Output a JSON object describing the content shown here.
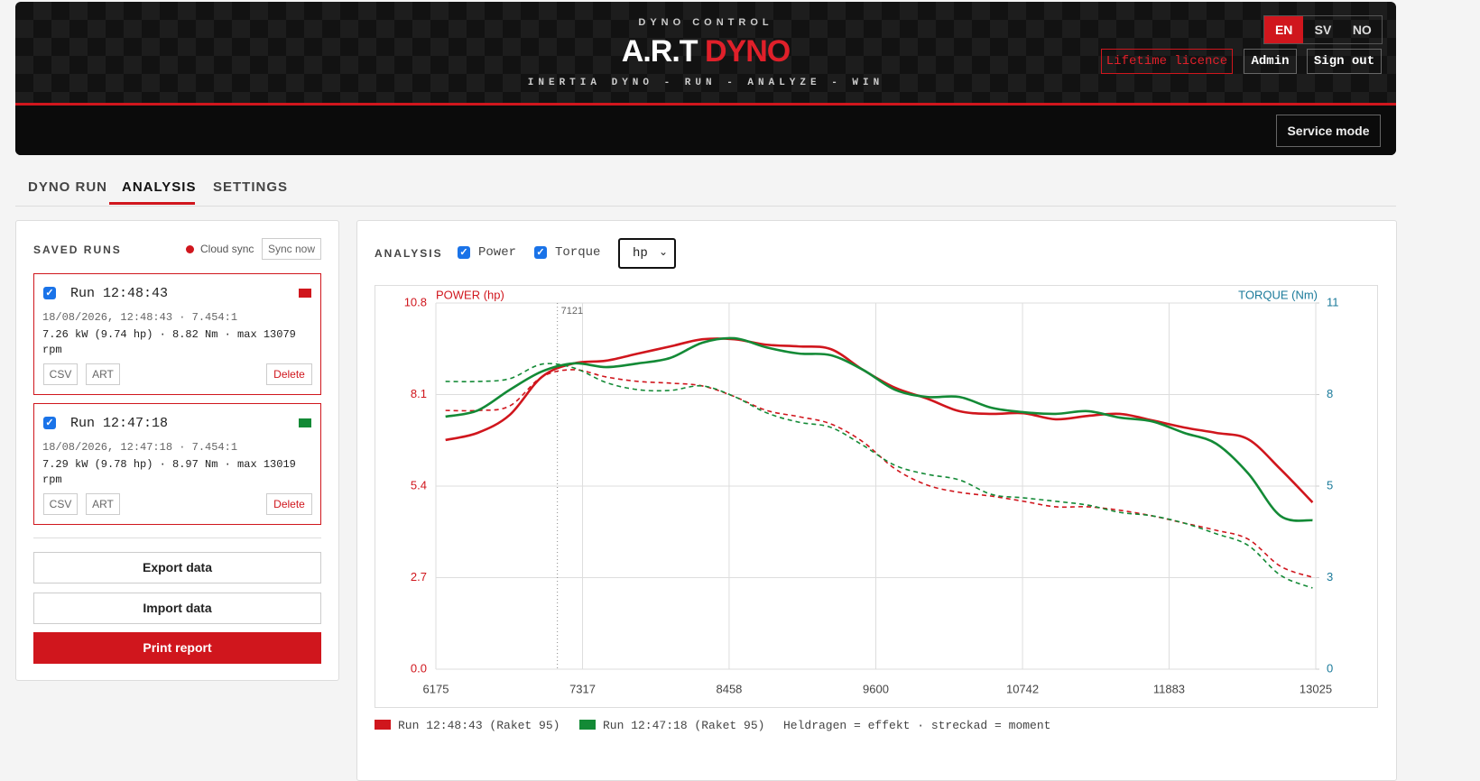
{
  "header": {
    "kicker": "DYNO CONTROL",
    "brand_main": "A.R.T",
    "brand_accent": "DYNO",
    "tagline": "INERTIA DYNO - RUN - ANALYZE - WIN",
    "languages": [
      "EN",
      "SV",
      "NO"
    ],
    "licence": "Lifetime licence",
    "admin": "Admin",
    "sign_out": "Sign out",
    "service_mode": "Service mode"
  },
  "tabs": [
    "DYNO RUN",
    "ANALYSIS",
    "SETTINGS"
  ],
  "saved_runs": {
    "title": "SAVED RUNS",
    "cloud_sync": "Cloud sync",
    "sync_now": "Sync now",
    "runs": [
      {
        "name": "Run 12:48:43",
        "meta": "18/08/2026, 12:48:43 · 7.454:1",
        "stats": "7.26 kW (9.74 hp) · 8.82 Nm · max 13079 rpm",
        "color": "#d0161d",
        "actions": [
          "CSV",
          "ART",
          "Delete"
        ]
      },
      {
        "name": "Run 12:47:18",
        "meta": "18/08/2026, 12:47:18 · 7.454:1",
        "stats": "7.29 kW (9.78 hp) · 8.97 Nm · max 13019 rpm",
        "color": "#138a36",
        "actions": [
          "CSV",
          "ART",
          "Delete"
        ]
      }
    ],
    "export": "Export data",
    "import": "Import data",
    "print": "Print report"
  },
  "analysis": {
    "title": "ANALYSIS",
    "toggles": [
      "Power",
      "Torque"
    ],
    "unit": "hp"
  },
  "chart_data": {
    "type": "line",
    "ylabel": "POWER (hp)",
    "y2label": "TORQUE (Nm)",
    "note": "Heldragen = effekt · streckad = moment",
    "marker_x": 7121,
    "xlim": [
      6175,
      13025
    ],
    "xticks": [
      6175,
      7317,
      8458,
      9600,
      10742,
      11883,
      13025
    ],
    "ylim": [
      0,
      10.8
    ],
    "yticks": [
      {
        "value": 0,
        "label": "0.0"
      },
      2.7,
      5.4,
      8.1,
      10.8
    ],
    "y2lim": [
      0,
      10.6
    ],
    "y2ticks": [
      0,
      {
        "value": 2.65,
        "label": "3"
      },
      {
        "value": 5.3,
        "label": "5"
      },
      {
        "value": 7.95,
        "label": "8"
      },
      {
        "value": 10.6,
        "label": "11"
      }
    ],
    "grid": true,
    "x": [
      6250,
      6500,
      6750,
      7000,
      7250,
      7500,
      7750,
      8000,
      8250,
      8500,
      8750,
      9000,
      9250,
      9500,
      9750,
      10000,
      10250,
      10500,
      10750,
      11000,
      11250,
      11500,
      11750,
      12000,
      12250,
      12500,
      12750,
      13000
    ],
    "series": [
      {
        "name": "Run 12:48:43 (Raket 95)",
        "color": "#d0161d",
        "values": [
          6.76,
          6.97,
          7.5,
          8.62,
          9.02,
          9.1,
          9.31,
          9.52,
          9.73,
          9.73,
          9.57,
          9.52,
          9.44,
          8.83,
          8.3,
          7.98,
          7.61,
          7.53,
          7.55,
          7.37,
          7.47,
          7.53,
          7.34,
          7.13,
          6.97,
          6.78,
          5.9,
          4.92
        ],
        "torque": [
          7.49,
          7.49,
          7.62,
          8.46,
          8.67,
          8.46,
          8.33,
          8.28,
          8.2,
          7.89,
          7.49,
          7.31,
          7.1,
          6.58,
          5.8,
          5.33,
          5.12,
          5.01,
          4.86,
          4.7,
          4.7,
          4.6,
          4.44,
          4.23,
          4.02,
          3.76,
          2.98,
          2.66
        ]
      },
      {
        "name": "Run 12:47:18 (Raket 95)",
        "color": "#138a36",
        "values": [
          7.45,
          7.63,
          8.24,
          8.78,
          9.02,
          8.91,
          9.02,
          9.18,
          9.63,
          9.76,
          9.49,
          9.31,
          9.26,
          8.83,
          8.24,
          8.03,
          8.03,
          7.71,
          7.58,
          7.53,
          7.61,
          7.42,
          7.31,
          6.97,
          6.65,
          5.77,
          4.52,
          4.39
        ],
        "torque": [
          8.33,
          8.33,
          8.41,
          8.83,
          8.72,
          8.3,
          8.09,
          8.07,
          8.2,
          7.89,
          7.42,
          7.15,
          7.0,
          6.48,
          5.9,
          5.64,
          5.48,
          5.06,
          4.96,
          4.86,
          4.75,
          4.54,
          4.44,
          4.23,
          3.92,
          3.58,
          2.72,
          2.35
        ]
      }
    ]
  }
}
